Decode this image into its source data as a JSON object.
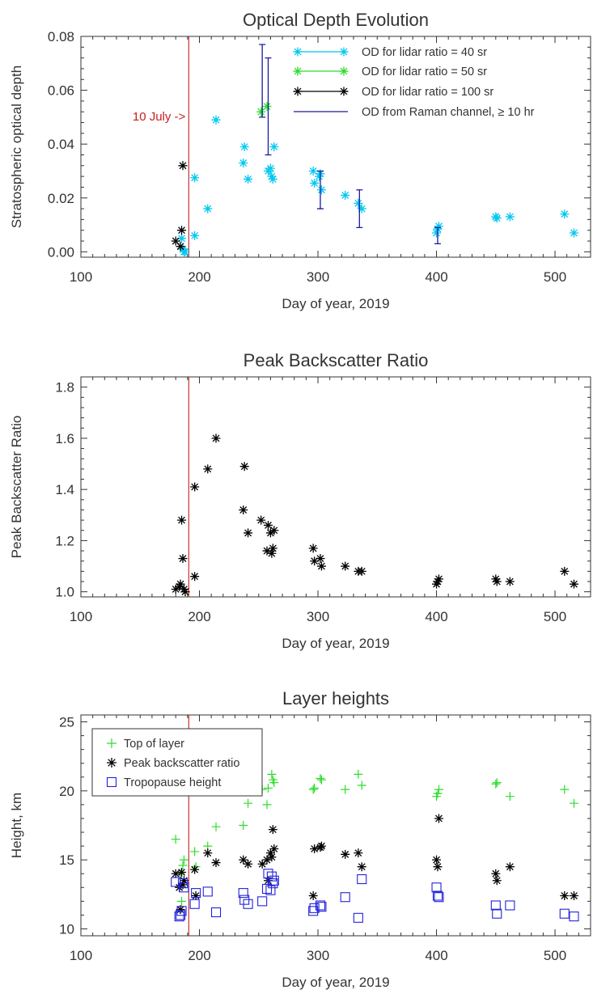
{
  "chart_data": [
    {
      "type": "scatter",
      "title": "Optical Depth Evolution",
      "xlabel": "Day of year, 2019",
      "ylabel": "Stratospheric optical depth",
      "xlim": [
        100,
        530
      ],
      "ylim": [
        -0.002,
        0.08
      ],
      "xticks": [
        100,
        200,
        300,
        400,
        500
      ],
      "yticks": [
        0.0,
        0.02,
        0.04,
        0.06,
        0.08
      ],
      "ytick_labels": [
        "0.00",
        "0.02",
        "0.04",
        "0.06",
        "0.08"
      ],
      "vline": {
        "x": 191,
        "color": "#c81e1e",
        "label": "10 July ->"
      },
      "legend_position": "top-right",
      "series": [
        {
          "name": "OD for lidar ratio = 40 sr",
          "color": "#00c8f0",
          "marker": "asterisk",
          "points": [
            [
              185,
              0.005
            ],
            [
              186,
              0.001
            ],
            [
              187,
              0.0
            ],
            [
              188,
              0.0
            ],
            [
              196,
              0.006
            ],
            [
              196,
              0.0275
            ],
            [
              207,
              0.016
            ],
            [
              214,
              0.049
            ],
            [
              237,
              0.033
            ],
            [
              238,
              0.039
            ],
            [
              241,
              0.027
            ],
            [
              258,
              0.03
            ],
            [
              260,
              0.031
            ],
            [
              261,
              0.028
            ],
            [
              262,
              0.027
            ],
            [
              263,
              0.039
            ],
            [
              296,
              0.03
            ],
            [
              297,
              0.0255
            ],
            [
              301,
              0.028
            ],
            [
              302,
              0.029
            ],
            [
              303,
              0.023
            ],
            [
              323,
              0.021
            ],
            [
              334,
              0.018
            ],
            [
              337,
              0.016
            ],
            [
              400,
              0.007
            ],
            [
              401,
              0.0085
            ],
            [
              402,
              0.0095
            ],
            [
              450,
              0.013
            ],
            [
              451,
              0.0125
            ],
            [
              462,
              0.013
            ],
            [
              508,
              0.014
            ],
            [
              516,
              0.007
            ]
          ]
        },
        {
          "name": "OD for lidar ratio = 50 sr",
          "color": "#2ddc2d",
          "marker": "asterisk",
          "points": [
            [
              252,
              0.052
            ],
            [
              257,
              0.054
            ]
          ]
        },
        {
          "name": "OD for lidar ratio = 100 sr",
          "color": "#000000",
          "marker": "asterisk",
          "points": [
            [
              180,
              0.004
            ],
            [
              184,
              0.002
            ],
            [
              185,
              0.008
            ],
            [
              186,
              0.032
            ]
          ]
        },
        {
          "name": "OD from Raman channel, ≥ 10 hr",
          "color": "#1a1aa0",
          "marker": "errorbar",
          "errorbars": [
            [
              253,
              0.05,
              0.077
            ],
            [
              258,
              0.036,
              0.072
            ],
            [
              302,
              0.016,
              0.03
            ],
            [
              335,
              0.009,
              0.023
            ],
            [
              401,
              0.003,
              0.009
            ]
          ]
        }
      ]
    },
    {
      "type": "scatter",
      "title": "Peak Backscatter Ratio",
      "xlabel": "Day of year, 2019",
      "ylabel": "Peak Backscatter Ratio",
      "xlim": [
        100,
        530
      ],
      "ylim": [
        0.98,
        1.84
      ],
      "xticks": [
        100,
        200,
        300,
        400,
        500
      ],
      "yticks": [
        1.0,
        1.2,
        1.4,
        1.6,
        1.8
      ],
      "ytick_labels": [
        "1.0",
        "1.2",
        "1.4",
        "1.6",
        "1.8"
      ],
      "vline": {
        "x": 191,
        "color": "#c81e1e"
      },
      "series": [
        {
          "name": "",
          "color": "#000000",
          "marker": "asterisk",
          "points": [
            [
              180,
              1.01
            ],
            [
              183,
              1.02
            ],
            [
              184,
              1.03
            ],
            [
              185,
              1.28
            ],
            [
              186,
              1.13
            ],
            [
              187,
              1.01
            ],
            [
              188,
              1.0
            ],
            [
              196,
              1.41
            ],
            [
              196,
              1.06
            ],
            [
              207,
              1.48
            ],
            [
              214,
              1.6
            ],
            [
              237,
              1.32
            ],
            [
              238,
              1.49
            ],
            [
              241,
              1.23
            ],
            [
              252,
              1.28
            ],
            [
              257,
              1.16
            ],
            [
              258,
              1.26
            ],
            [
              260,
              1.23
            ],
            [
              261,
              1.15
            ],
            [
              262,
              1.17
            ],
            [
              263,
              1.24
            ],
            [
              296,
              1.17
            ],
            [
              297,
              1.12
            ],
            [
              302,
              1.13
            ],
            [
              303,
              1.1
            ],
            [
              323,
              1.1
            ],
            [
              334,
              1.08
            ],
            [
              337,
              1.08
            ],
            [
              400,
              1.03
            ],
            [
              401,
              1.04
            ],
            [
              402,
              1.05
            ],
            [
              450,
              1.05
            ],
            [
              451,
              1.04
            ],
            [
              462,
              1.04
            ],
            [
              508,
              1.08
            ],
            [
              516,
              1.03
            ]
          ]
        }
      ]
    },
    {
      "type": "scatter",
      "title": "Layer heights",
      "xlabel": "Day of year, 2019",
      "ylabel": "Height, km",
      "xlim": [
        100,
        530
      ],
      "ylim": [
        9.5,
        25.5
      ],
      "xticks": [
        100,
        200,
        300,
        400,
        500
      ],
      "yticks": [
        10,
        15,
        20,
        25
      ],
      "ytick_labels": [
        "10",
        "15",
        "20",
        "25"
      ],
      "vline": {
        "x": 191,
        "color": "#c81e1e"
      },
      "legend_position": "top-left",
      "series": [
        {
          "name": "Top of layer",
          "color": "#2ddc2d",
          "marker": "plus",
          "points": [
            [
              180,
              16.5
            ],
            [
              184,
              14.0
            ],
            [
              185,
              12.0
            ],
            [
              186,
              14.6
            ],
            [
              187,
              15.0
            ],
            [
              196,
              15.6
            ],
            [
              197,
              14.5
            ],
            [
              207,
              16.0
            ],
            [
              214,
              17.4
            ],
            [
              237,
              17.5
            ],
            [
              238,
              21.0
            ],
            [
              241,
              19.1
            ],
            [
              253,
              20.1
            ],
            [
              257,
              19.0
            ],
            [
              258,
              20.2
            ],
            [
              261,
              21.2
            ],
            [
              262,
              20.8
            ],
            [
              263,
              20.6
            ],
            [
              296,
              20.1
            ],
            [
              297,
              20.2
            ],
            [
              302,
              20.9
            ],
            [
              303,
              20.8
            ],
            [
              323,
              20.1
            ],
            [
              334,
              21.2
            ],
            [
              337,
              20.4
            ],
            [
              400,
              19.6
            ],
            [
              401,
              19.8
            ],
            [
              402,
              20.1
            ],
            [
              450,
              20.5
            ],
            [
              451,
              20.6
            ],
            [
              462,
              19.6
            ],
            [
              508,
              20.1
            ],
            [
              516,
              19.1
            ]
          ]
        },
        {
          "name": "Peak backscatter ratio",
          "color": "#000000",
          "marker": "asterisk",
          "points": [
            [
              180,
              14.0
            ],
            [
              183,
              13.0
            ],
            [
              184,
              11.4
            ],
            [
              185,
              14.1
            ],
            [
              186,
              13.2
            ],
            [
              187,
              13.5
            ],
            [
              196,
              14.3
            ],
            [
              197,
              12.4
            ],
            [
              207,
              15.5
            ],
            [
              214,
              14.8
            ],
            [
              237,
              15.0
            ],
            [
              238,
              20.8
            ],
            [
              241,
              14.7
            ],
            [
              253,
              14.7
            ],
            [
              257,
              15.0
            ],
            [
              258,
              13.5
            ],
            [
              260,
              15.5
            ],
            [
              261,
              15.2
            ],
            [
              262,
              17.2
            ],
            [
              263,
              15.8
            ],
            [
              296,
              12.4
            ],
            [
              297,
              15.8
            ],
            [
              302,
              15.9
            ],
            [
              303,
              16.0
            ],
            [
              323,
              15.4
            ],
            [
              334,
              15.5
            ],
            [
              337,
              14.5
            ],
            [
              400,
              15.0
            ],
            [
              401,
              14.5
            ],
            [
              402,
              18.0
            ],
            [
              450,
              14.0
            ],
            [
              451,
              13.5
            ],
            [
              462,
              14.5
            ],
            [
              508,
              12.4
            ],
            [
              516,
              12.4
            ]
          ]
        },
        {
          "name": "Tropopause height",
          "color": "#2222dd",
          "marker": "square",
          "points": [
            [
              180,
              13.4
            ],
            [
              183,
              10.9
            ],
            [
              184,
              11.0
            ],
            [
              185,
              11.3
            ],
            [
              186,
              13.3
            ],
            [
              187,
              13.0
            ],
            [
              196,
              11.8
            ],
            [
              197,
              12.6
            ],
            [
              207,
              12.7
            ],
            [
              214,
              11.2
            ],
            [
              237,
              12.6
            ],
            [
              238,
              12.1
            ],
            [
              241,
              11.8
            ],
            [
              253,
              12.0
            ],
            [
              257,
              12.9
            ],
            [
              258,
              14.0
            ],
            [
              260,
              12.8
            ],
            [
              261,
              13.8
            ],
            [
              262,
              13.3
            ],
            [
              263,
              13.5
            ],
            [
              296,
              11.3
            ],
            [
              297,
              11.5
            ],
            [
              302,
              11.7
            ],
            [
              303,
              11.6
            ],
            [
              323,
              12.3
            ],
            [
              334,
              10.8
            ],
            [
              337,
              13.6
            ],
            [
              400,
              13.0
            ],
            [
              401,
              12.4
            ],
            [
              402,
              12.3
            ],
            [
              450,
              11.7
            ],
            [
              451,
              11.1
            ],
            [
              462,
              11.7
            ],
            [
              508,
              11.1
            ],
            [
              516,
              10.9
            ]
          ]
        }
      ]
    }
  ]
}
